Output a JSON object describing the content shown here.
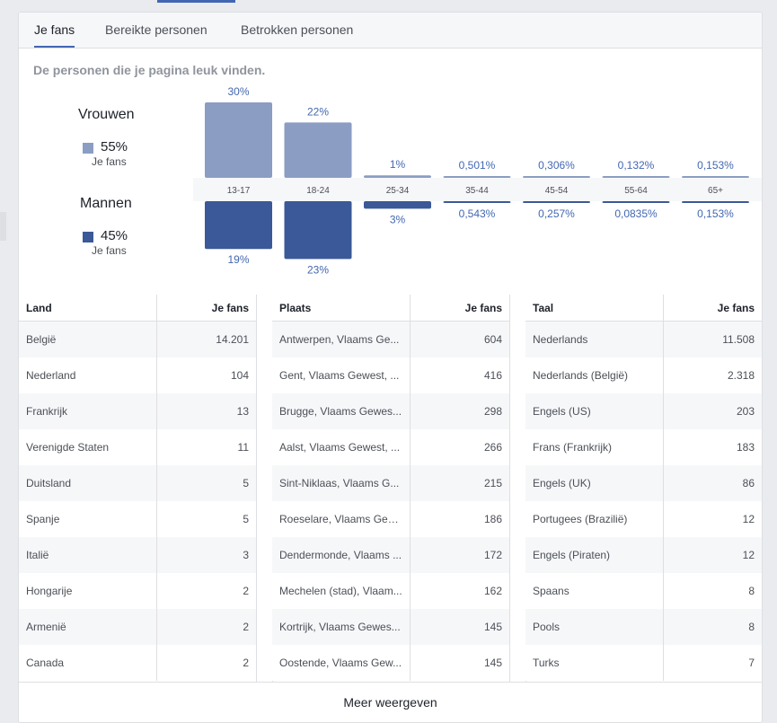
{
  "tabs": [
    {
      "label": "Je fans"
    },
    {
      "label": "Bereikte personen"
    },
    {
      "label": "Betrokken personen"
    }
  ],
  "subtitle": "De personen die je pagina leuk vinden.",
  "legend": {
    "women": {
      "title": "Vrouwen",
      "pct": "55%",
      "sub": "Je fans",
      "color": "#8b9dc3"
    },
    "men": {
      "title": "Mannen",
      "pct": "45%",
      "sub": "Je fans",
      "color": "#3b5998"
    }
  },
  "chart_data": {
    "type": "bar",
    "categories": [
      "13-17",
      "18-24",
      "25-34",
      "35-44",
      "45-54",
      "55-64",
      "65+"
    ],
    "series": [
      {
        "name": "Vrouwen",
        "values": [
          30,
          22,
          1,
          0.501,
          0.306,
          0.132,
          0.153
        ],
        "labels": [
          "30%",
          "22%",
          "1%",
          "0,501%",
          "0,306%",
          "0,132%",
          "0,153%"
        ],
        "color": "#8b9dc3"
      },
      {
        "name": "Mannen",
        "values": [
          19,
          23,
          3,
          0.543,
          0.257,
          0.0835,
          0.153
        ],
        "labels": [
          "19%",
          "23%",
          "3%",
          "0,543%",
          "0,257%",
          "0,0835%",
          "0,153%"
        ],
        "color": "#3b5998"
      }
    ]
  },
  "tables": {
    "land": {
      "headers": [
        "Land",
        "Je fans"
      ],
      "rows": [
        [
          "België",
          "14.201"
        ],
        [
          "Nederland",
          "104"
        ],
        [
          "Frankrijk",
          "13"
        ],
        [
          "Verenigde Staten",
          "11"
        ],
        [
          "Duitsland",
          "5"
        ],
        [
          "Spanje",
          "5"
        ],
        [
          "Italië",
          "3"
        ],
        [
          "Hongarije",
          "2"
        ],
        [
          "Armenië",
          "2"
        ],
        [
          "Canada",
          "2"
        ]
      ]
    },
    "plaats": {
      "headers": [
        "Plaats",
        "Je fans"
      ],
      "rows": [
        [
          "Antwerpen, Vlaams Ge...",
          "604"
        ],
        [
          "Gent, Vlaams Gewest, ...",
          "416"
        ],
        [
          "Brugge, Vlaams Gewes...",
          "298"
        ],
        [
          "Aalst, Vlaams Gewest, ...",
          "266"
        ],
        [
          "Sint-Niklaas, Vlaams G...",
          "215"
        ],
        [
          "Roeselare, Vlaams Gew...",
          "186"
        ],
        [
          "Dendermonde, Vlaams ...",
          "172"
        ],
        [
          "Mechelen (stad), Vlaam...",
          "162"
        ],
        [
          "Kortrijk, Vlaams Gewes...",
          "145"
        ],
        [
          "Oostende, Vlaams Gew...",
          "145"
        ]
      ]
    },
    "taal": {
      "headers": [
        "Taal",
        "Je fans"
      ],
      "rows": [
        [
          "Nederlands",
          "11.508"
        ],
        [
          "Nederlands (België)",
          "2.318"
        ],
        [
          "Engels (US)",
          "203"
        ],
        [
          "Frans (Frankrijk)",
          "183"
        ],
        [
          "Engels (UK)",
          "86"
        ],
        [
          "Portugees (Brazilië)",
          "12"
        ],
        [
          "Engels (Piraten)",
          "12"
        ],
        [
          "Spaans",
          "8"
        ],
        [
          "Pools",
          "8"
        ],
        [
          "Turks",
          "7"
        ]
      ]
    }
  },
  "more_label": "Meer weergeven"
}
